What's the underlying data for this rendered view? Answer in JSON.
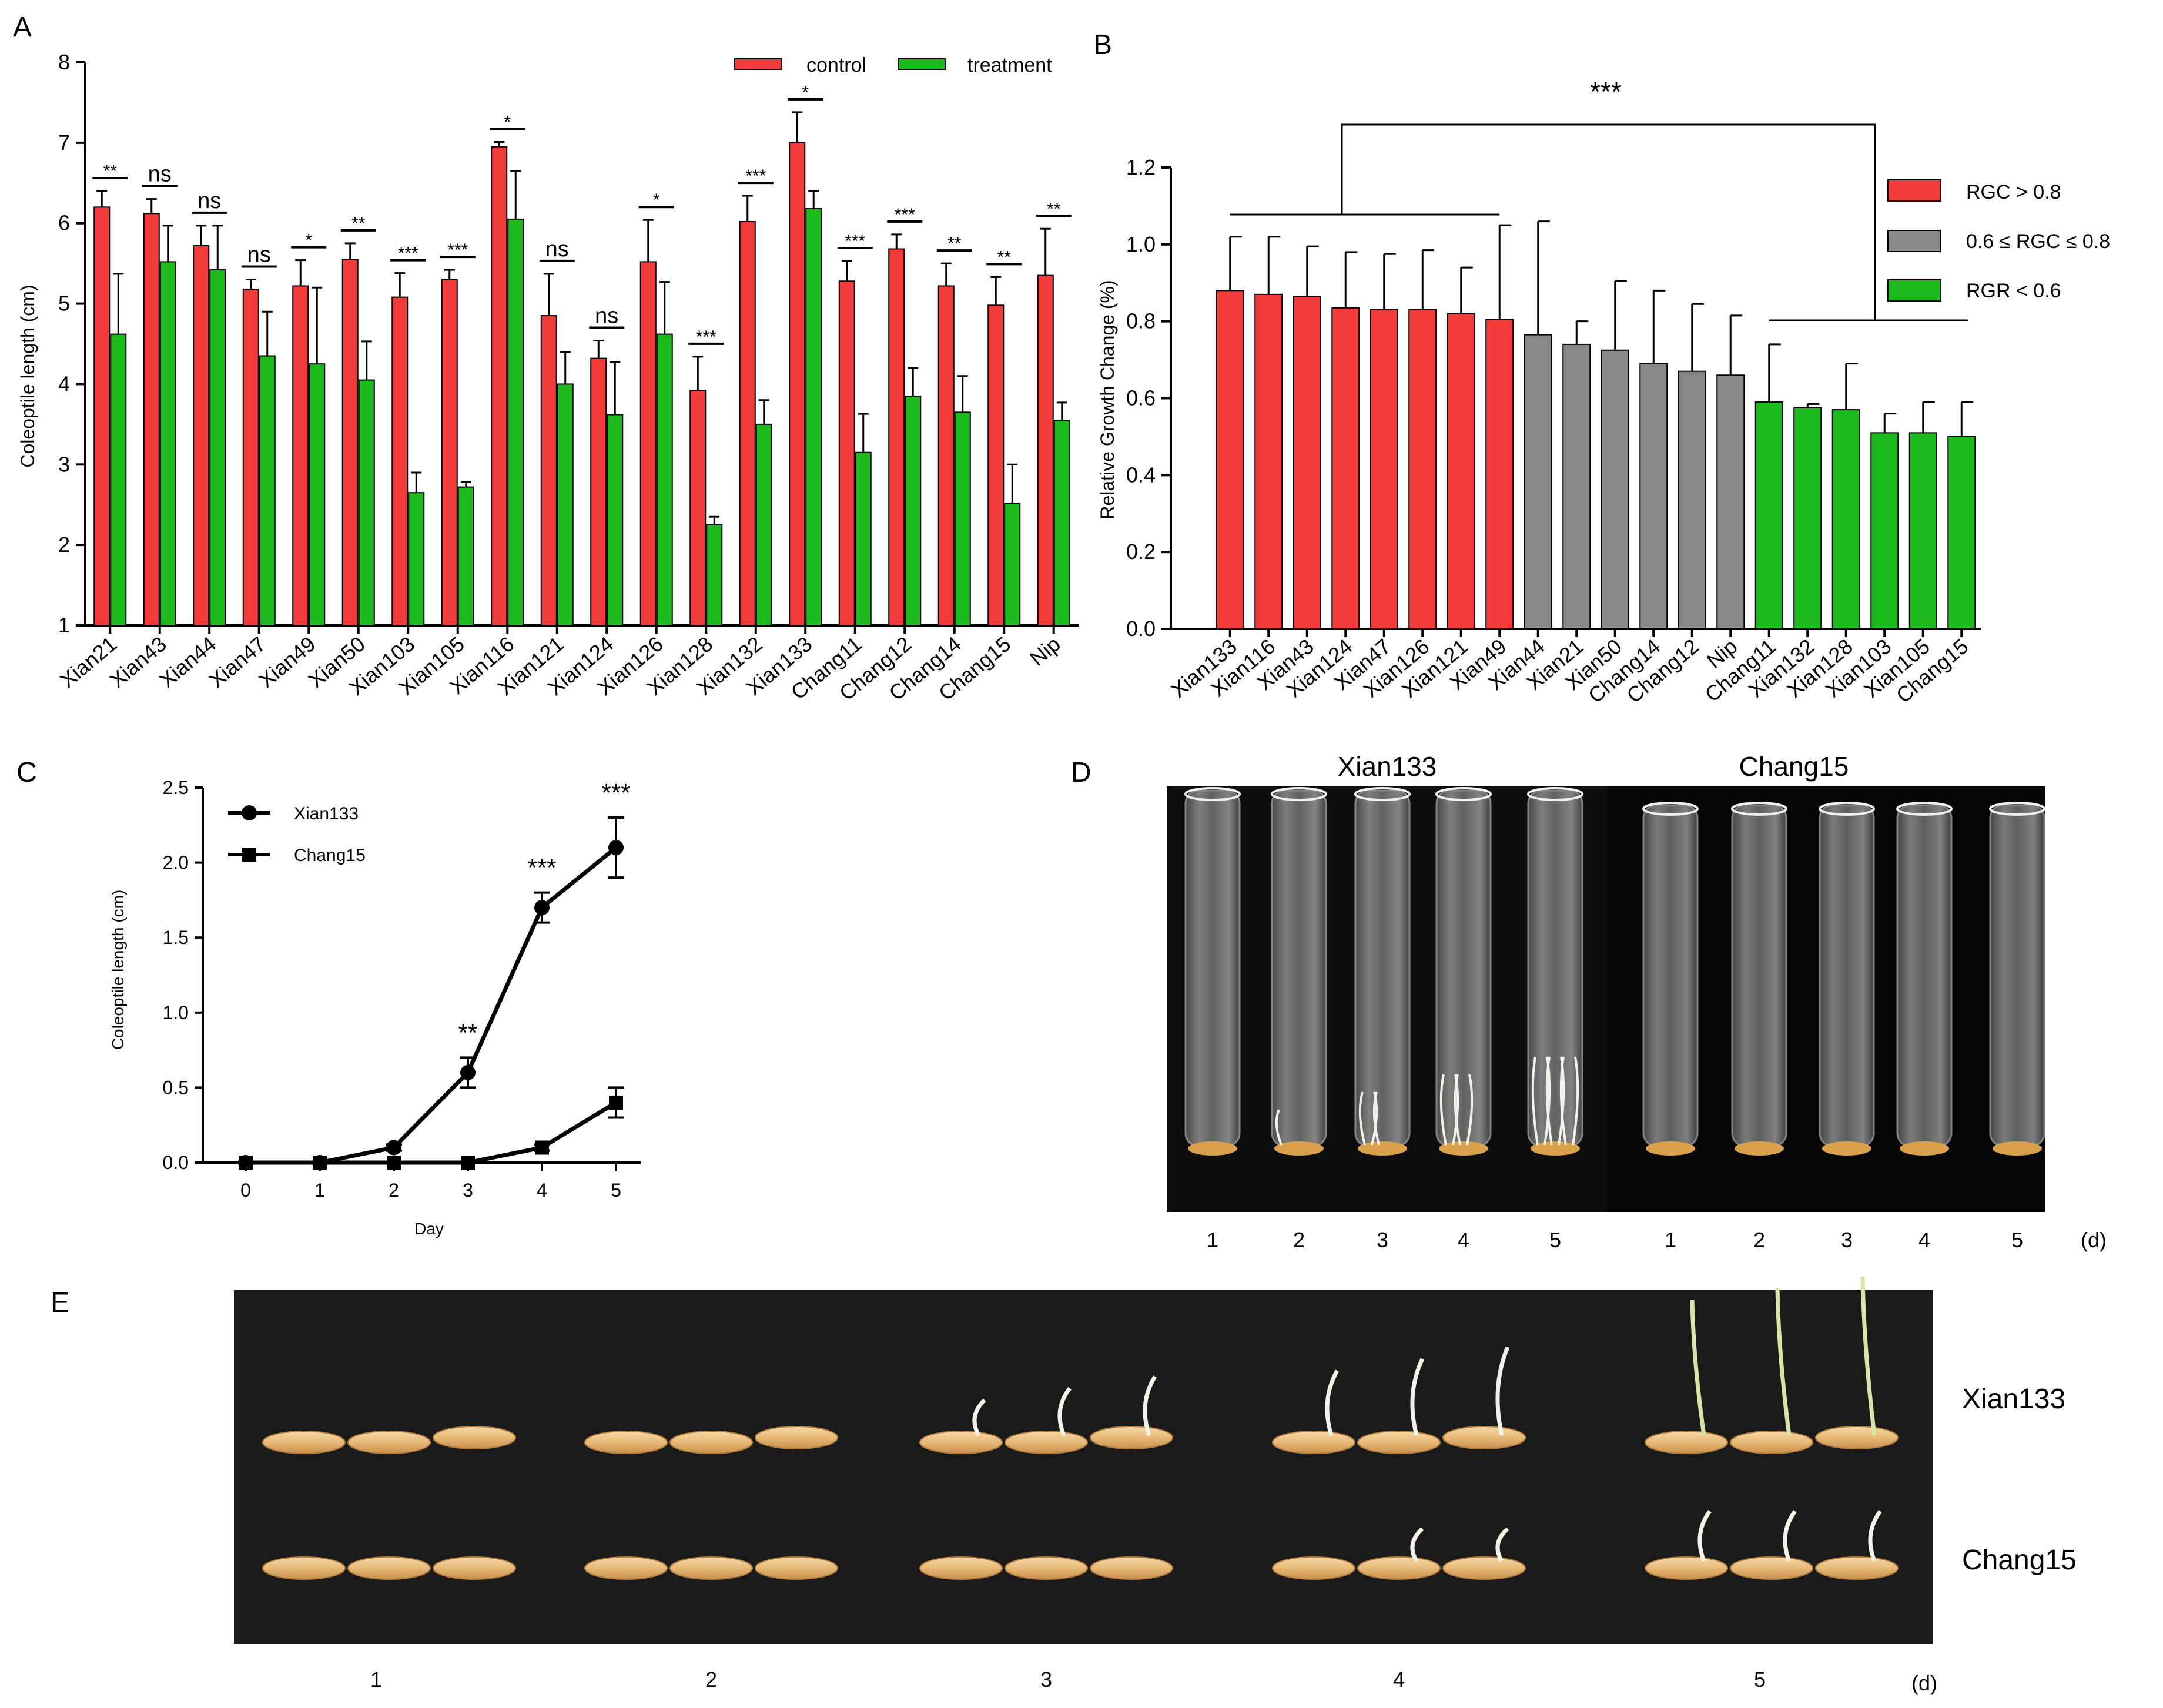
{
  "panels": {
    "A": {
      "label": "A",
      "chart_data": {
        "type": "bar",
        "ylabel": "Coleoptile length (cm)",
        "ylim": [
          1,
          8
        ],
        "yticks": [
          1,
          2,
          3,
          4,
          5,
          6,
          7,
          8
        ],
        "categories": [
          "Xian21",
          "Xian43",
          "Xian44",
          "Xian47",
          "Xian49",
          "Xian50",
          "Xian103",
          "Xian105",
          "Xian116",
          "Xian121",
          "Xian124",
          "Xian126",
          "Xian128",
          "Xian132",
          "Xian133",
          "Chang11",
          "Chang12",
          "Chang14",
          "Chang15",
          "Nip"
        ],
        "series": [
          {
            "name": "control",
            "color": "#f23b3b",
            "values": [
              6.2,
              6.12,
              5.72,
              5.18,
              5.22,
              5.55,
              5.08,
              5.3,
              6.95,
              4.85,
              4.32,
              5.52,
              3.92,
              6.02,
              7.0,
              5.28,
              5.68,
              5.22,
              4.98,
              5.35
            ],
            "errors": [
              0.2,
              0.18,
              0.25,
              0.12,
              0.32,
              0.2,
              0.3,
              0.12,
              0.06,
              0.52,
              0.22,
              0.52,
              0.42,
              0.32,
              0.38,
              0.25,
              0.18,
              0.28,
              0.35,
              0.58
            ]
          },
          {
            "name": "treatment",
            "color": "#1cba1c",
            "values": [
              4.62,
              5.52,
              5.42,
              4.35,
              4.25,
              4.05,
              2.65,
              2.72,
              6.05,
              4.0,
              3.62,
              4.62,
              2.25,
              3.5,
              6.18,
              3.15,
              3.85,
              3.65,
              2.52,
              3.55
            ],
            "errors": [
              0.75,
              0.45,
              0.55,
              0.55,
              0.95,
              0.48,
              0.25,
              0.06,
              0.6,
              0.4,
              0.65,
              0.65,
              0.1,
              0.3,
              0.22,
              0.48,
              0.35,
              0.45,
              0.48,
              0.22
            ]
          }
        ],
        "significance": [
          "**",
          "ns",
          "ns",
          "ns",
          "*",
          "**",
          "***",
          "***",
          "*",
          "ns",
          "ns",
          "*",
          "***",
          "***",
          "*",
          "***",
          "***",
          "**",
          "**",
          "**"
        ],
        "legend": [
          "control",
          "treatment"
        ],
        "legend_position": "top-right"
      }
    },
    "B": {
      "label": "B",
      "chart_data": {
        "type": "bar",
        "ylabel": "Relative Growth Change (%)",
        "ylim": [
          0,
          1.2
        ],
        "yticks": [
          "0.0",
          "0.2",
          "0.4",
          "0.6",
          "0.8",
          "1.0",
          "1.2"
        ],
        "categories": [
          "Xian133",
          "Xian116",
          "Xian43",
          "Xian124",
          "Xian47",
          "Xian126",
          "Xian121",
          "Xian49",
          "Xian44",
          "Xian21",
          "Xian50",
          "Chang14",
          "Chang12",
          "Nip",
          "Chang11",
          "Xian132",
          "Xian128",
          "Xian103",
          "Xian105",
          "Chang15"
        ],
        "values": [
          0.88,
          0.87,
          0.865,
          0.835,
          0.83,
          0.83,
          0.82,
          0.805,
          0.765,
          0.74,
          0.725,
          0.69,
          0.67,
          0.66,
          0.59,
          0.575,
          0.57,
          0.51,
          0.51,
          0.5
        ],
        "errors": [
          0.14,
          0.15,
          0.13,
          0.145,
          0.145,
          0.155,
          0.12,
          0.245,
          0.295,
          0.06,
          0.18,
          0.19,
          0.175,
          0.155,
          0.15,
          0.01,
          0.12,
          0.05,
          0.08,
          0.09
        ],
        "groups": [
          0,
          0,
          0,
          0,
          0,
          0,
          0,
          0,
          1,
          1,
          1,
          1,
          1,
          1,
          2,
          2,
          2,
          2,
          2,
          2
        ],
        "group_colors": [
          "#f23b3b",
          "#888888",
          "#1cba1c"
        ],
        "legend": [
          "RGC > 0.8",
          "0.6 ≤ RGC ≤ 0.8",
          "RGR < 0.6"
        ],
        "legend_position": "top-right",
        "annotation": "***"
      }
    },
    "C": {
      "label": "C",
      "chart_data": {
        "type": "line",
        "xlabel": "Day",
        "ylabel": "Coleoptile length (cm)",
        "x": [
          0,
          1,
          2,
          3,
          4,
          5
        ],
        "ylim": [
          0,
          2.5
        ],
        "yticks": [
          "0.0",
          "0.5",
          "1.0",
          "1.5",
          "2.0",
          "2.5"
        ],
        "xticks": [
          "0",
          "1",
          "2",
          "3",
          "4",
          "5"
        ],
        "series": [
          {
            "name": "Xian133",
            "marker": "circle",
            "values": [
              0,
              0,
              0.1,
              0.6,
              1.7,
              2.1
            ],
            "errors": [
              0,
              0,
              0.02,
              0.1,
              0.1,
              0.2
            ]
          },
          {
            "name": "Chang15",
            "marker": "square",
            "values": [
              0,
              0,
              0,
              0,
              0.1,
              0.4
            ],
            "errors": [
              0,
              0,
              0,
              0,
              0.02,
              0.1
            ]
          }
        ],
        "annotations": [
          {
            "x": 3,
            "text": "**"
          },
          {
            "x": 4,
            "text": "***"
          },
          {
            "x": 5,
            "text": "***"
          }
        ],
        "legend_position": "top-left"
      }
    },
    "D": {
      "label": "D",
      "photo_labels": [
        "Xian133",
        "Chang15"
      ],
      "days_left": [
        "1",
        "2",
        "3",
        "4",
        "5"
      ],
      "days_right": [
        "1",
        "2",
        "3",
        "4",
        "5"
      ],
      "unit": "(d)"
    },
    "E": {
      "label": "E",
      "row_labels": [
        "Xian133",
        "Chang15"
      ],
      "days": [
        "1",
        "2",
        "3",
        "4",
        "5"
      ],
      "unit": "(d)"
    }
  }
}
